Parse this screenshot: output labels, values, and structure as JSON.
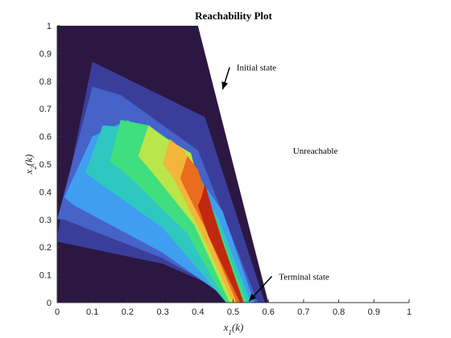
{
  "chart_data": {
    "type": "heatmap",
    "title": "Reachability Plot",
    "xlabel_main": "x",
    "xlabel_sub": "1",
    "xlabel_tail": "(k)",
    "ylabel_main": "x",
    "ylabel_sub": "2",
    "ylabel_tail": "(k)",
    "xlim": [
      0,
      1
    ],
    "ylim": [
      0,
      1
    ],
    "x_ticks": [
      "0",
      "0.1",
      "0.2",
      "0.3",
      "0.4",
      "0.5",
      "0.6",
      "0.7",
      "0.8",
      "0.9",
      "1"
    ],
    "y_ticks": [
      "0",
      "0.1",
      "0.2",
      "0.3",
      "0.4",
      "0.5",
      "0.6",
      "0.7",
      "0.8",
      "0.9",
      "1"
    ],
    "grid": false,
    "colors": {
      "background": "#ffffff",
      "dark": "#2b1742",
      "band1": "#3a3e9a",
      "band2": "#4563c8",
      "band3": "#3f9ef0",
      "band4": "#2ec8c0",
      "band5": "#3fde7f",
      "band6": "#b9e64a",
      "band7": "#f2b63a",
      "band8": "#ea6c1e",
      "band9": "#c0280f"
    },
    "regions": [
      {
        "name": "outer",
        "points": [
          [
            0,
            1
          ],
          [
            0.4,
            1
          ],
          [
            0.6,
            0
          ],
          [
            0,
            0
          ]
        ]
      },
      {
        "name": "band1",
        "points": [
          [
            0,
            0.24
          ],
          [
            0.1,
            0.87
          ],
          [
            0.42,
            0.67
          ],
          [
            0.59,
            0
          ],
          [
            0.55,
            0
          ],
          [
            0.3,
            0.14
          ],
          [
            0,
            0.22
          ]
        ]
      },
      {
        "name": "band2",
        "points": [
          [
            0,
            0.3
          ],
          [
            0.1,
            0.78
          ],
          [
            0.18,
            0.75
          ],
          [
            0.4,
            0.55
          ],
          [
            0.57,
            0
          ],
          [
            0.53,
            0
          ],
          [
            0.3,
            0.16
          ],
          [
            0.02,
            0.3
          ]
        ]
      },
      {
        "name": "band3",
        "points": [
          [
            0.02,
            0.38
          ],
          [
            0.1,
            0.6
          ],
          [
            0.2,
            0.66
          ],
          [
            0.35,
            0.55
          ],
          [
            0.47,
            0.33
          ],
          [
            0.56,
            0
          ],
          [
            0.5,
            0
          ],
          [
            0.3,
            0.18
          ],
          [
            0.05,
            0.35
          ]
        ]
      },
      {
        "name": "band4",
        "points": [
          [
            0.08,
            0.47
          ],
          [
            0.13,
            0.64
          ],
          [
            0.22,
            0.63
          ],
          [
            0.35,
            0.54
          ],
          [
            0.46,
            0.3
          ],
          [
            0.55,
            0
          ],
          [
            0.48,
            0
          ],
          [
            0.3,
            0.27
          ],
          [
            0.1,
            0.45
          ]
        ]
      },
      {
        "name": "band5",
        "points": [
          [
            0.15,
            0.51
          ],
          [
            0.18,
            0.66
          ],
          [
            0.26,
            0.64
          ],
          [
            0.36,
            0.55
          ],
          [
            0.45,
            0.3
          ],
          [
            0.54,
            0
          ],
          [
            0.48,
            0
          ],
          [
            0.37,
            0.25
          ],
          [
            0.2,
            0.46
          ]
        ]
      },
      {
        "name": "band6",
        "points": [
          [
            0.23,
            0.53
          ],
          [
            0.26,
            0.64
          ],
          [
            0.3,
            0.6
          ],
          [
            0.38,
            0.54
          ],
          [
            0.43,
            0.3
          ],
          [
            0.53,
            0
          ],
          [
            0.49,
            0
          ],
          [
            0.39,
            0.28
          ],
          [
            0.27,
            0.47
          ]
        ]
      },
      {
        "name": "band7",
        "points": [
          [
            0.3,
            0.5
          ],
          [
            0.32,
            0.59
          ],
          [
            0.36,
            0.55
          ],
          [
            0.4,
            0.45
          ],
          [
            0.45,
            0.28
          ],
          [
            0.53,
            0
          ],
          [
            0.5,
            0
          ],
          [
            0.41,
            0.25
          ],
          [
            0.33,
            0.45
          ]
        ]
      },
      {
        "name": "band8",
        "points": [
          [
            0.35,
            0.45
          ],
          [
            0.37,
            0.53
          ],
          [
            0.4,
            0.48
          ],
          [
            0.44,
            0.32
          ],
          [
            0.53,
            0
          ],
          [
            0.51,
            0
          ],
          [
            0.42,
            0.27
          ],
          [
            0.36,
            0.42
          ]
        ]
      },
      {
        "name": "band9",
        "points": [
          [
            0.41,
            0.38
          ],
          [
            0.42,
            0.43
          ],
          [
            0.44,
            0.34
          ],
          [
            0.47,
            0.22
          ],
          [
            0.53,
            0
          ],
          [
            0.52,
            0
          ],
          [
            0.43,
            0.24
          ],
          [
            0.4,
            0.35
          ]
        ]
      }
    ],
    "annotations": [
      {
        "label": "Initial state",
        "text_x": 0.51,
        "text_y": 0.85,
        "arrow_from": [
          0.49,
          0.85
        ],
        "arrow_to": [
          0.47,
          0.77
        ]
      },
      {
        "label": "Unreachable",
        "text_x": 0.67,
        "text_y": 0.55
      },
      {
        "label": "Terminal state",
        "text_x": 0.63,
        "text_y": 0.095,
        "arrow_from": [
          0.61,
          0.095
        ],
        "arrow_to": [
          0.545,
          0.005
        ]
      }
    ]
  }
}
